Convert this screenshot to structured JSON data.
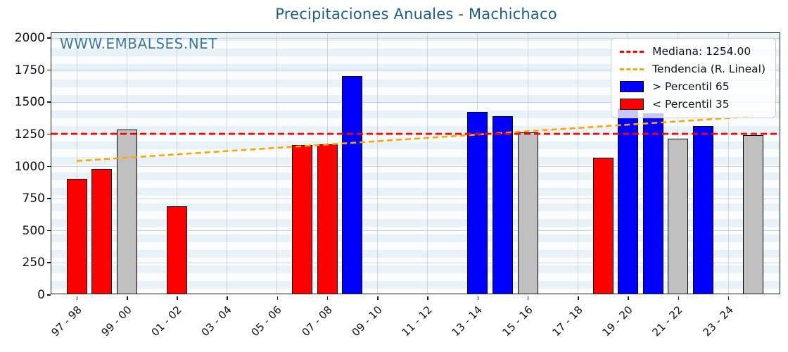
{
  "chart": {
    "title": "Precipitaciones Anuales - Machichaco",
    "watermark": "WWW.EMBALSES.NET"
  },
  "legend": {
    "median_label": "Mediana: 1254.00",
    "trend_label": "Tendencia (R. Lineal)",
    "above_label": "> Percentil 65",
    "below_label": "< Percentil 35"
  },
  "chart_data": {
    "type": "bar",
    "title": "Precipitaciones Anuales - Machichaco",
    "xlabel": "",
    "ylabel": "",
    "ylim": [
      0,
      2038
    ],
    "y_ticks": [
      0,
      250,
      500,
      750,
      1000,
      1250,
      1500,
      1750,
      2000
    ],
    "x_tick_labels": [
      "97 - 98",
      "99 - 00",
      "01 - 02",
      "03 - 04",
      "05 - 06",
      "07 - 08",
      "09 - 10",
      "11 - 12",
      "13 - 14",
      "15 - 16",
      "17 - 18",
      "19 - 20",
      "21 - 22",
      "23 - 24"
    ],
    "x_tick_year_indices": [
      0,
      2,
      4,
      6,
      8,
      10,
      12,
      14,
      16,
      18,
      20,
      22,
      24,
      26
    ],
    "base_start_year": 1997,
    "grid": true,
    "legend_position": "upper right",
    "colors": {
      "above_p65": "#0000ff",
      "below_p35": "#ff0000",
      "mid": "#c0c0c0",
      "median_line": "#ff0000",
      "trend_line": "#ffa500",
      "bar_edge": "#000000"
    },
    "bars": [
      {
        "season": "97 - 98",
        "year_index": 0,
        "value": 895,
        "category": "below_p35"
      },
      {
        "season": "98 - 99",
        "year_index": 1,
        "value": 970,
        "category": "below_p35"
      },
      {
        "season": "99 - 00",
        "year_index": 2,
        "value": 1278,
        "category": "mid"
      },
      {
        "season": "01 - 02",
        "year_index": 4,
        "value": 680,
        "category": "below_p35"
      },
      {
        "season": "06 - 07",
        "year_index": 9,
        "value": 1158,
        "category": "below_p35"
      },
      {
        "season": "07 - 08",
        "year_index": 10,
        "value": 1163,
        "category": "below_p35"
      },
      {
        "season": "08 - 09",
        "year_index": 11,
        "value": 1695,
        "category": "above_p65"
      },
      {
        "season": "13 - 14",
        "year_index": 16,
        "value": 1415,
        "category": "above_p65"
      },
      {
        "season": "14 - 15",
        "year_index": 17,
        "value": 1380,
        "category": "above_p65"
      },
      {
        "season": "15 - 16",
        "year_index": 18,
        "value": 1256,
        "category": "mid"
      },
      {
        "season": "18 - 19",
        "year_index": 21,
        "value": 1060,
        "category": "below_p35"
      },
      {
        "season": "19 - 20",
        "year_index": 22,
        "value": 1440,
        "category": "above_p65"
      },
      {
        "season": "20 - 21",
        "year_index": 23,
        "value": 1405,
        "category": "above_p65"
      },
      {
        "season": "21 - 22",
        "year_index": 24,
        "value": 1205,
        "category": "mid"
      },
      {
        "season": "22 - 23",
        "year_index": 25,
        "value": 1305,
        "category": "above_p65"
      },
      {
        "season": "24 - 25",
        "year_index": 27,
        "value": 1233,
        "category": "mid"
      }
    ],
    "median": {
      "value": 1254
    },
    "trend": {
      "start_year_index": 0,
      "start_value": 1043,
      "end_year_index": 27,
      "end_value": 1390
    }
  }
}
